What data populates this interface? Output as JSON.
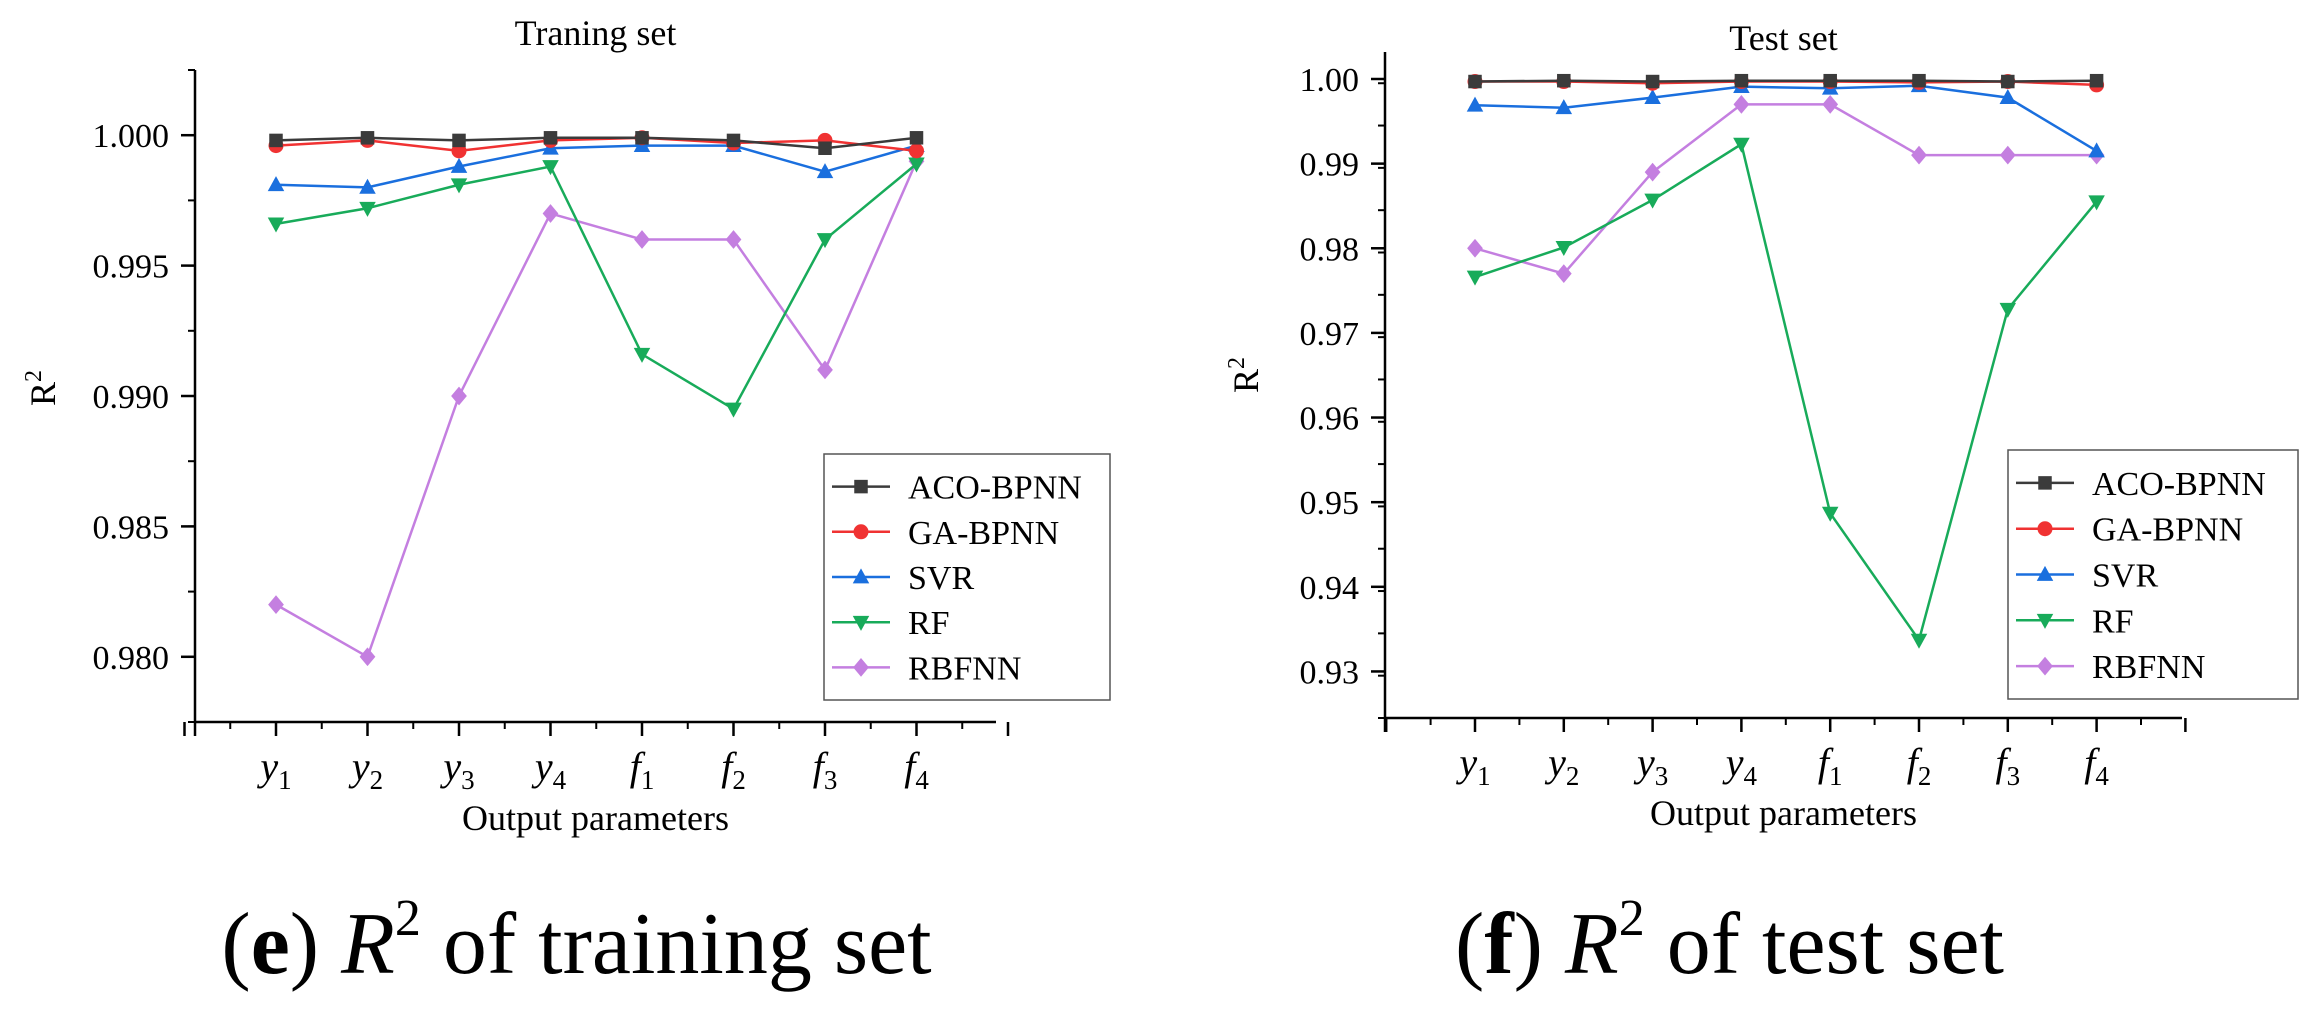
{
  "colors": {
    "ACO-BPNN": "#3b3b3b",
    "GA-BPNN": "#f03232",
    "SVR": "#1a6fde",
    "RF": "#18ab5a",
    "RBFNN": "#c47fe0"
  },
  "markers": {
    "ACO-BPNN": "square",
    "GA-BPNN": "circle",
    "SVR": "triangle-up",
    "RF": "triangle-down",
    "RBFNN": "diamond"
  },
  "categories": [
    {
      "base": "y",
      "sub": "1"
    },
    {
      "base": "y",
      "sub": "2"
    },
    {
      "base": "y",
      "sub": "3"
    },
    {
      "base": "y",
      "sub": "4"
    },
    {
      "base": "f",
      "sub": "1"
    },
    {
      "base": "f",
      "sub": "2"
    },
    {
      "base": "f",
      "sub": "3"
    },
    {
      "base": "f",
      "sub": "4"
    }
  ],
  "chart_data": [
    {
      "type": "line",
      "title": "Traning set",
      "xlabel": "Output parameters",
      "ylabel": "R",
      "ylabel_sup": "2",
      "categories": [
        "y1",
        "y2",
        "y3",
        "y4",
        "f1",
        "f2",
        "f3",
        "f4"
      ],
      "ylim": [
        0.9775,
        1.0025
      ],
      "yticks": [
        "1.000",
        "0.995",
        "0.990",
        "0.985",
        "0.980"
      ],
      "ytick_values": [
        1.0,
        0.995,
        0.99,
        0.985,
        0.98
      ],
      "legend_position": "bottom-right",
      "series": [
        {
          "name": "ACO-BPNN",
          "values": [
            0.9998,
            0.9999,
            0.9998,
            0.9999,
            0.9999,
            0.9998,
            0.9995,
            0.9999
          ]
        },
        {
          "name": "GA-BPNN",
          "values": [
            0.9996,
            0.9998,
            0.9994,
            0.9998,
            0.9999,
            0.9997,
            0.9998,
            0.9994
          ]
        },
        {
          "name": "SVR",
          "values": [
            0.9981,
            0.998,
            0.9988,
            0.9995,
            0.9996,
            0.9996,
            0.9986,
            0.9996
          ]
        },
        {
          "name": "RF",
          "values": [
            0.9966,
            0.9972,
            0.9981,
            0.9988,
            0.9916,
            0.9895,
            0.996,
            0.9989
          ]
        },
        {
          "name": "RBFNN",
          "values": [
            0.982,
            0.98,
            0.99,
            0.997,
            0.996,
            0.996,
            0.991,
            0.999
          ]
        }
      ]
    },
    {
      "type": "line",
      "title": "Test set",
      "xlabel": "Output parameters",
      "ylabel": "R",
      "ylabel_sup": "2",
      "categories": [
        "y1",
        "y2",
        "y3",
        "y4",
        "f1",
        "f2",
        "f3",
        "f4"
      ],
      "ylim": [
        0.9245,
        1.0
      ],
      "yticks": [
        "1.00",
        "0.99",
        "0.98",
        "0.97",
        "0.96",
        "0.95",
        "0.94",
        "0.93"
      ],
      "ytick_values": [
        1.0,
        0.99,
        0.98,
        0.97,
        0.96,
        0.95,
        0.94,
        0.93
      ],
      "legend_position": "bottom-right",
      "series": [
        {
          "name": "ACO-BPNN",
          "values": [
            0.9997,
            0.9998,
            0.9997,
            0.9998,
            0.9998,
            0.9998,
            0.9997,
            0.9998
          ]
        },
        {
          "name": "GA-BPNN",
          "values": [
            0.9997,
            0.9997,
            0.9995,
            0.9997,
            0.9997,
            0.9996,
            0.9997,
            0.9993
          ]
        },
        {
          "name": "SVR",
          "values": [
            0.9969,
            0.9966,
            0.9978,
            0.9991,
            0.9989,
            0.9992,
            0.9978,
            0.9915
          ]
        },
        {
          "name": "RF",
          "values": [
            0.9766,
            0.9801,
            0.9857,
            0.9923,
            0.9487,
            0.9337,
            0.9728,
            0.9855
          ]
        },
        {
          "name": "RBFNN",
          "values": [
            0.98,
            0.977,
            0.989,
            0.997,
            0.997,
            0.991,
            0.991,
            0.991
          ]
        }
      ]
    }
  ],
  "captions": [
    {
      "letter": "e",
      "paren_open": "(",
      "paren_close": ")",
      "var": "R",
      "sup": "2",
      "text": "of training set"
    },
    {
      "letter": "f",
      "paren_open": "(",
      "paren_close": ")",
      "var": "R",
      "sup": "2",
      "text": "of test set"
    }
  ]
}
